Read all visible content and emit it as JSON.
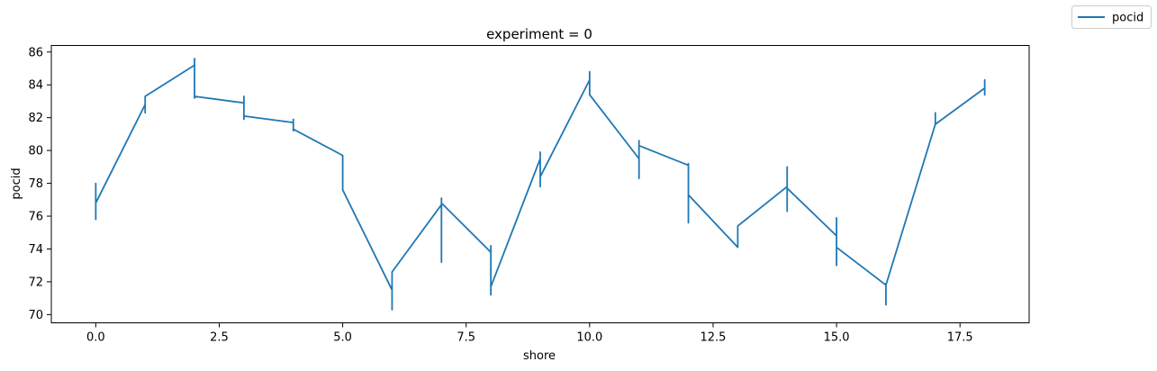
{
  "chart_data": {
    "type": "line",
    "title": "experiment = 0",
    "xlabel": "shore",
    "ylabel": "pocid",
    "xlim": [
      -0.9,
      18.9
    ],
    "ylim": [
      69.5,
      86.4
    ],
    "xticks": [
      0.0,
      2.5,
      5.0,
      7.5,
      10.0,
      12.5,
      15.0,
      17.5
    ],
    "xtick_labels": [
      "0.0",
      "2.5",
      "5.0",
      "7.5",
      "10.0",
      "12.5",
      "15.0",
      "17.5"
    ],
    "yticks": [
      70,
      72,
      74,
      76,
      78,
      80,
      82,
      84,
      86
    ],
    "ytick_labels": [
      "70",
      "72",
      "74",
      "76",
      "78",
      "80",
      "82",
      "84",
      "86"
    ],
    "grid": false,
    "legend": {
      "placement": "top-right",
      "entries": [
        "pocid"
      ]
    },
    "series": [
      {
        "name": "pocid",
        "color": "#1f77b4",
        "x": [
          0,
          0,
          0,
          0,
          0,
          1,
          1,
          1,
          2,
          2,
          2,
          2,
          3,
          3,
          3,
          3,
          3,
          3,
          4,
          4,
          4,
          4,
          5,
          5,
          6,
          6,
          6,
          7,
          7,
          7,
          7,
          8,
          8,
          8,
          8,
          8,
          9,
          9,
          9,
          9,
          9,
          10,
          10,
          10,
          10,
          11,
          11,
          11,
          11,
          12,
          12,
          12,
          12,
          12,
          13,
          13,
          14,
          14,
          14,
          14,
          14,
          15,
          15,
          15,
          15,
          16,
          16,
          16,
          16,
          17,
          17,
          17,
          18,
          18,
          18
        ],
        "y": [
          76.7,
          78.0,
          75.8,
          76.9,
          76.8,
          82.8,
          82.3,
          83.3,
          85.2,
          85.6,
          83.2,
          83.3,
          82.9,
          83.3,
          82.4,
          81.9,
          82.2,
          82.1,
          81.7,
          81.9,
          81.2,
          81.3,
          79.7,
          77.6,
          71.5,
          70.3,
          72.6,
          76.7,
          73.2,
          77.1,
          76.8,
          73.8,
          74.2,
          71.2,
          72.0,
          71.7,
          79.5,
          79.9,
          77.8,
          78.3,
          78.4,
          84.3,
          84.8,
          83.5,
          83.4,
          79.5,
          78.3,
          80.6,
          80.3,
          79.1,
          79.2,
          75.6,
          77.7,
          77.3,
          74.1,
          75.4,
          77.8,
          79.0,
          76.3,
          78.3,
          77.7,
          74.8,
          75.9,
          73.0,
          74.1,
          71.8,
          70.6,
          71.9,
          71.8,
          81.6,
          82.3,
          81.6,
          83.8,
          84.3,
          83.4
        ]
      }
    ]
  }
}
